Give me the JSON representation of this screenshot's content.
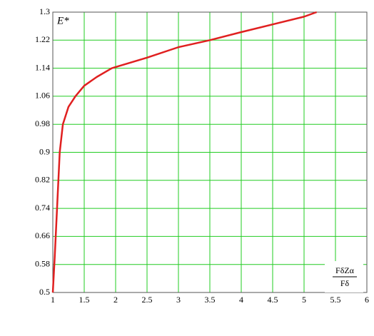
{
  "chart_data": {
    "type": "line",
    "y_label": "E*",
    "x_label_numerator": "FδZα",
    "x_label_denominator": "Fδ",
    "x": [
      1,
      1.03,
      1.07,
      1.11,
      1.16,
      1.25,
      1.36,
      1.5,
      1.7,
      1.94,
      2.5,
      3,
      3.5,
      4,
      4.5,
      5,
      5.2
    ],
    "series": [
      {
        "color": "#e02020",
        "values": [
          0.5,
          0.6,
          0.75,
          0.9,
          0.98,
          1.03,
          1.06,
          1.09,
          1.115,
          1.14,
          1.17,
          1.2,
          1.22,
          1.243,
          1.265,
          1.287,
          1.3
        ]
      }
    ],
    "xlim": [
      1,
      6
    ],
    "ylim": [
      0.5,
      1.3
    ],
    "xticks": [
      1,
      1.5,
      2,
      2.5,
      3,
      3.5,
      4,
      4.5,
      5,
      5.5,
      6
    ],
    "yticks": [
      0.5,
      0.58,
      0.66,
      0.74,
      0.82,
      0.9,
      0.98,
      1.06,
      1.14,
      1.22,
      1.3
    ],
    "grid": true,
    "grid_color": "#22cc22"
  }
}
